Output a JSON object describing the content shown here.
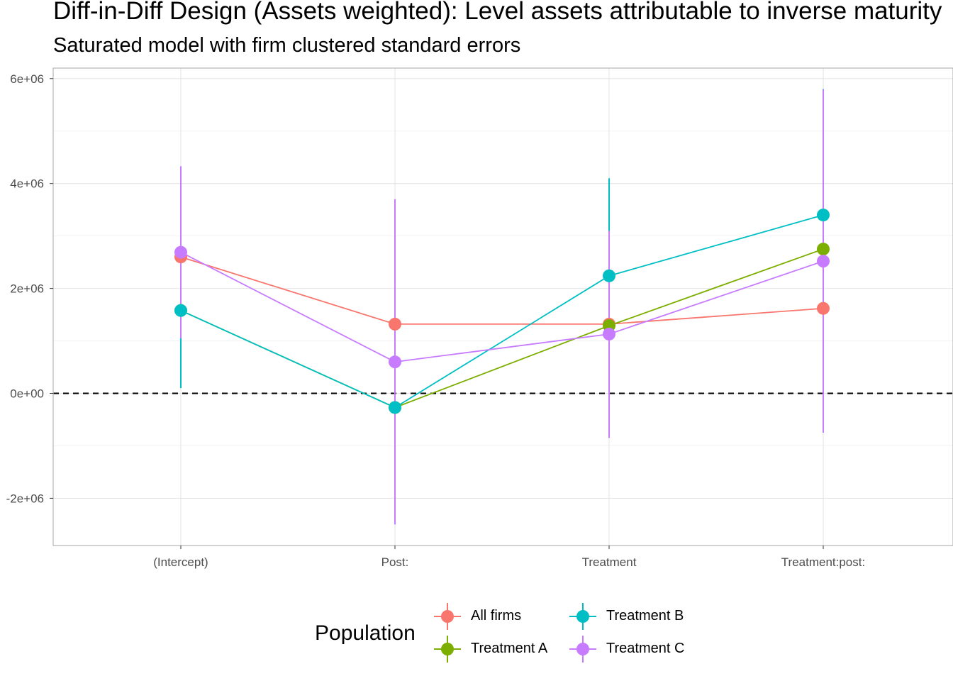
{
  "chart_data": {
    "type": "line",
    "title": "Diff-in-Diff Design (Assets weighted): Level assets attributable to inverse maturity",
    "subtitle": "Saturated model with firm clustered standard errors",
    "categories": [
      "(Intercept)",
      "Post:",
      "Treatment",
      "Treatment:post:"
    ],
    "ylim": [
      -2900000,
      6200000
    ],
    "y_ticks": [
      -2000000,
      0,
      2000000,
      4000000,
      6000000
    ],
    "y_tick_labels": [
      "-2e+06",
      "0e+00",
      "2e+06",
      "4e+06",
      "6e+06"
    ],
    "reference_line": {
      "y": 0,
      "style": "dashed"
    },
    "grid": true,
    "legend": {
      "title": "Population",
      "placement": "bottom"
    },
    "series": [
      {
        "name": "All firms",
        "color": "#F8766D",
        "values": [
          2600000,
          1320000,
          1320000,
          1620000
        ],
        "lower": [
          2100000,
          1000000,
          1000000,
          1100000
        ],
        "upper": [
          3100000,
          1650000,
          1650000,
          2100000
        ]
      },
      {
        "name": "Treatment A",
        "color": "#7CAE00",
        "values": [
          1580000,
          -270000,
          1290000,
          2750000
        ],
        "lower": [
          1050000,
          -1000000,
          700000,
          2100000
        ],
        "upper": [
          2100000,
          450000,
          1900000,
          3400000
        ]
      },
      {
        "name": "Treatment B",
        "color": "#00BFC4",
        "values": [
          1580000,
          -270000,
          2240000,
          3400000
        ],
        "lower": [
          100000,
          -1100000,
          400000,
          1000000
        ],
        "upper": [
          3100000,
          600000,
          4100000,
          5800000
        ]
      },
      {
        "name": "Treatment C",
        "color": "#C77CFF",
        "values": [
          2690000,
          600000,
          1130000,
          2520000
        ],
        "lower": [
          1050000,
          -2500000,
          -850000,
          -750000
        ],
        "upper": [
          4330000,
          3700000,
          3100000,
          5790000
        ]
      }
    ]
  }
}
